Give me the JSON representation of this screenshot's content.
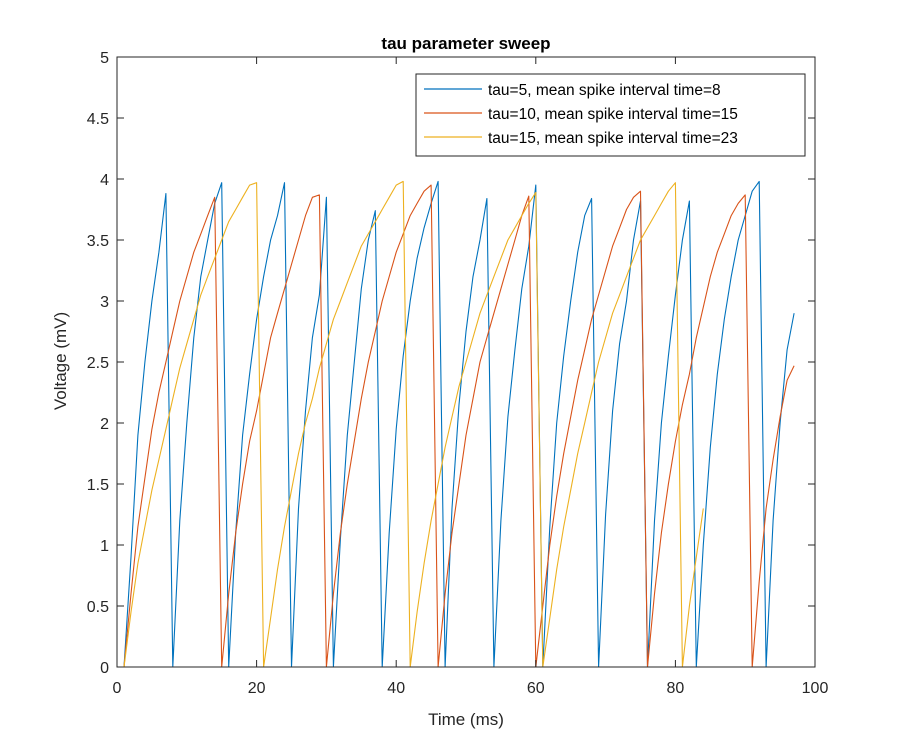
{
  "chart_data": {
    "type": "line",
    "title": "tau parameter sweep",
    "xlabel": "Time (ms)",
    "ylabel": "Voltage (mV)",
    "xlim": [
      0,
      100
    ],
    "ylim": [
      0,
      5
    ],
    "xticks": [
      "0",
      "20",
      "40",
      "60",
      "80",
      "100"
    ],
    "yticks": [
      "0",
      "0.5",
      "1",
      "1.5",
      "2",
      "2.5",
      "3",
      "3.5",
      "4",
      "4.5",
      "5"
    ],
    "grid": false,
    "legend_position": "top-right",
    "series": [
      {
        "name": "tau=5, mean spike interval time=8",
        "color": "#0072BD",
        "points": [
          [
            1,
            0
          ],
          [
            2,
            0.9
          ],
          [
            3,
            1.9
          ],
          [
            4,
            2.5
          ],
          [
            5,
            3.0
          ],
          [
            6,
            3.4
          ],
          [
            7,
            3.88
          ],
          [
            8,
            0
          ],
          [
            9,
            1.2
          ],
          [
            10,
            2.0
          ],
          [
            11,
            2.7
          ],
          [
            12,
            3.2
          ],
          [
            13,
            3.5
          ],
          [
            14,
            3.8
          ],
          [
            15,
            3.97
          ],
          [
            16,
            0
          ],
          [
            17,
            1.1
          ],
          [
            18,
            1.9
          ],
          [
            19,
            2.4
          ],
          [
            20,
            2.85
          ],
          [
            21,
            3.2
          ],
          [
            22,
            3.5
          ],
          [
            23,
            3.7
          ],
          [
            24,
            3.97
          ],
          [
            25,
            0
          ],
          [
            26,
            1.3
          ],
          [
            27,
            2.1
          ],
          [
            28,
            2.7
          ],
          [
            29,
            3.05
          ],
          [
            30,
            3.85
          ],
          [
            31,
            0
          ],
          [
            32,
            1.05
          ],
          [
            33,
            1.9
          ],
          [
            34,
            2.5
          ],
          [
            35,
            3.1
          ],
          [
            36,
            3.5
          ],
          [
            37,
            3.74
          ],
          [
            38,
            0
          ],
          [
            39,
            1.1
          ],
          [
            40,
            1.95
          ],
          [
            41,
            2.55
          ],
          [
            42,
            3.0
          ],
          [
            43,
            3.35
          ],
          [
            44,
            3.6
          ],
          [
            45,
            3.8
          ],
          [
            46,
            3.98
          ],
          [
            47,
            0
          ],
          [
            48,
            1.3
          ],
          [
            49,
            2.15
          ],
          [
            50,
            2.75
          ],
          [
            51,
            3.2
          ],
          [
            52,
            3.5
          ],
          [
            53,
            3.84
          ],
          [
            54,
            0
          ],
          [
            55,
            1.2
          ],
          [
            56,
            2.05
          ],
          [
            57,
            2.6
          ],
          [
            58,
            3.1
          ],
          [
            59,
            3.45
          ],
          [
            60,
            3.95
          ],
          [
            61,
            0
          ],
          [
            62,
            1.15
          ],
          [
            63,
            2.0
          ],
          [
            64,
            2.55
          ],
          [
            65,
            3.0
          ],
          [
            66,
            3.4
          ],
          [
            67,
            3.7
          ],
          [
            68,
            3.84
          ],
          [
            69,
            0
          ],
          [
            70,
            1.25
          ],
          [
            71,
            2.1
          ],
          [
            72,
            2.65
          ],
          [
            73,
            3.0
          ],
          [
            74,
            3.5
          ],
          [
            75,
            3.82
          ],
          [
            76,
            0
          ],
          [
            77,
            1.2
          ],
          [
            78,
            2.0
          ],
          [
            79,
            2.55
          ],
          [
            80,
            3.05
          ],
          [
            81,
            3.5
          ],
          [
            82,
            3.82
          ],
          [
            83,
            0
          ],
          [
            84,
            1.0
          ],
          [
            85,
            1.8
          ],
          [
            86,
            2.4
          ],
          [
            87,
            2.85
          ],
          [
            88,
            3.2
          ],
          [
            89,
            3.5
          ],
          [
            90,
            3.7
          ],
          [
            91,
            3.9
          ],
          [
            92,
            3.98
          ],
          [
            93,
            0
          ],
          [
            94,
            1.2
          ],
          [
            95,
            2.0
          ],
          [
            96,
            2.6
          ],
          [
            97,
            2.9
          ]
        ]
      },
      {
        "name": "tau=10, mean spike interval time=15",
        "color": "#D95319",
        "points": [
          [
            1,
            0
          ],
          [
            2,
            0.6
          ],
          [
            3,
            1.15
          ],
          [
            4,
            1.55
          ],
          [
            5,
            1.95
          ],
          [
            6,
            2.25
          ],
          [
            7,
            2.5
          ],
          [
            8,
            2.75
          ],
          [
            9,
            3.0
          ],
          [
            10,
            3.2
          ],
          [
            11,
            3.4
          ],
          [
            12,
            3.55
          ],
          [
            13,
            3.7
          ],
          [
            14,
            3.85
          ],
          [
            15,
            0
          ],
          [
            16,
            0.6
          ],
          [
            17,
            1.1
          ],
          [
            18,
            1.5
          ],
          [
            19,
            1.85
          ],
          [
            20,
            2.1
          ],
          [
            21,
            2.4
          ],
          [
            22,
            2.7
          ],
          [
            23,
            2.9
          ],
          [
            24,
            3.1
          ],
          [
            25,
            3.3
          ],
          [
            26,
            3.5
          ],
          [
            27,
            3.7
          ],
          [
            28,
            3.85
          ],
          [
            29,
            3.87
          ],
          [
            30,
            0
          ],
          [
            31,
            0.6
          ],
          [
            32,
            1.1
          ],
          [
            33,
            1.5
          ],
          [
            34,
            1.85
          ],
          [
            35,
            2.2
          ],
          [
            36,
            2.5
          ],
          [
            37,
            2.75
          ],
          [
            38,
            3.0
          ],
          [
            39,
            3.2
          ],
          [
            40,
            3.4
          ],
          [
            41,
            3.55
          ],
          [
            42,
            3.7
          ],
          [
            43,
            3.8
          ],
          [
            44,
            3.9
          ],
          [
            45,
            3.95
          ],
          [
            46,
            0
          ],
          [
            47,
            0.6
          ],
          [
            48,
            1.1
          ],
          [
            49,
            1.5
          ],
          [
            50,
            1.9
          ],
          [
            51,
            2.2
          ],
          [
            52,
            2.5
          ],
          [
            53,
            2.7
          ],
          [
            54,
            2.9
          ],
          [
            55,
            3.1
          ],
          [
            56,
            3.3
          ],
          [
            57,
            3.5
          ],
          [
            58,
            3.7
          ],
          [
            59,
            3.86
          ],
          [
            60,
            0
          ],
          [
            61,
            0.5
          ],
          [
            62,
            1.0
          ],
          [
            63,
            1.4
          ],
          [
            64,
            1.75
          ],
          [
            65,
            2.05
          ],
          [
            66,
            2.35
          ],
          [
            67,
            2.6
          ],
          [
            68,
            2.85
          ],
          [
            69,
            3.05
          ],
          [
            70,
            3.25
          ],
          [
            71,
            3.45
          ],
          [
            72,
            3.6
          ],
          [
            73,
            3.75
          ],
          [
            74,
            3.85
          ],
          [
            75,
            3.9
          ],
          [
            76,
            0
          ],
          [
            77,
            0.6
          ],
          [
            78,
            1.1
          ],
          [
            79,
            1.5
          ],
          [
            80,
            1.85
          ],
          [
            81,
            2.15
          ],
          [
            82,
            2.4
          ],
          [
            83,
            2.7
          ],
          [
            84,
            2.95
          ],
          [
            85,
            3.2
          ],
          [
            86,
            3.4
          ],
          [
            87,
            3.55
          ],
          [
            88,
            3.7
          ],
          [
            89,
            3.8
          ],
          [
            90,
            3.87
          ],
          [
            91,
            0
          ],
          [
            92,
            0.7
          ],
          [
            93,
            1.3
          ],
          [
            94,
            1.7
          ],
          [
            95,
            2.05
          ],
          [
            96,
            2.35
          ],
          [
            97,
            2.47
          ]
        ]
      },
      {
        "name": "tau=15, mean spike interval time=23",
        "color": "#EDB120",
        "points": [
          [
            1,
            0
          ],
          [
            2,
            0.45
          ],
          [
            3,
            0.85
          ],
          [
            4,
            1.15
          ],
          [
            5,
            1.45
          ],
          [
            6,
            1.7
          ],
          [
            7,
            1.95
          ],
          [
            8,
            2.2
          ],
          [
            9,
            2.45
          ],
          [
            10,
            2.65
          ],
          [
            11,
            2.85
          ],
          [
            12,
            3.05
          ],
          [
            13,
            3.2
          ],
          [
            14,
            3.35
          ],
          [
            15,
            3.5
          ],
          [
            16,
            3.65
          ],
          [
            17,
            3.75
          ],
          [
            18,
            3.85
          ],
          [
            19,
            3.95
          ],
          [
            20,
            3.97
          ],
          [
            21,
            0
          ],
          [
            22,
            0.4
          ],
          [
            23,
            0.8
          ],
          [
            24,
            1.15
          ],
          [
            25,
            1.45
          ],
          [
            26,
            1.75
          ],
          [
            27,
            2.0
          ],
          [
            28,
            2.2
          ],
          [
            29,
            2.45
          ],
          [
            30,
            2.65
          ],
          [
            31,
            2.85
          ],
          [
            32,
            3.0
          ],
          [
            33,
            3.15
          ],
          [
            34,
            3.3
          ],
          [
            35,
            3.45
          ],
          [
            36,
            3.55
          ],
          [
            37,
            3.65
          ],
          [
            38,
            3.75
          ],
          [
            39,
            3.85
          ],
          [
            40,
            3.95
          ],
          [
            41,
            3.98
          ],
          [
            42,
            0
          ],
          [
            43,
            0.45
          ],
          [
            44,
            0.85
          ],
          [
            45,
            1.2
          ],
          [
            46,
            1.5
          ],
          [
            47,
            1.8
          ],
          [
            48,
            2.05
          ],
          [
            49,
            2.3
          ],
          [
            50,
            2.5
          ],
          [
            51,
            2.7
          ],
          [
            52,
            2.9
          ],
          [
            53,
            3.05
          ],
          [
            54,
            3.2
          ],
          [
            55,
            3.35
          ],
          [
            56,
            3.5
          ],
          [
            57,
            3.6
          ],
          [
            58,
            3.7
          ],
          [
            59,
            3.8
          ],
          [
            60,
            3.89
          ],
          [
            61,
            0
          ],
          [
            62,
            0.4
          ],
          [
            63,
            0.8
          ],
          [
            64,
            1.15
          ],
          [
            65,
            1.45
          ],
          [
            66,
            1.75
          ],
          [
            67,
            2.0
          ],
          [
            68,
            2.25
          ],
          [
            69,
            2.5
          ],
          [
            70,
            2.7
          ],
          [
            71,
            2.9
          ],
          [
            72,
            3.05
          ],
          [
            73,
            3.2
          ],
          [
            74,
            3.35
          ],
          [
            75,
            3.5
          ],
          [
            76,
            3.6
          ],
          [
            77,
            3.7
          ],
          [
            78,
            3.8
          ],
          [
            79,
            3.9
          ],
          [
            80,
            3.97
          ],
          [
            81,
            0
          ],
          [
            82,
            0.5
          ],
          [
            83,
            0.9
          ],
          [
            84,
            1.3
          ]
        ]
      }
    ]
  }
}
